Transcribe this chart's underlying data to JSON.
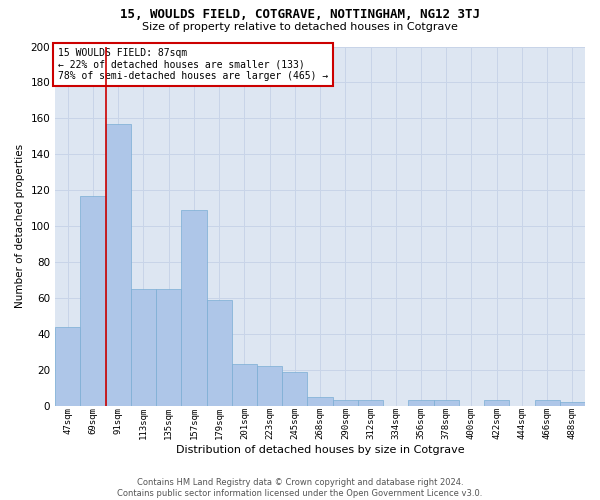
{
  "title1": "15, WOULDS FIELD, COTGRAVE, NOTTINGHAM, NG12 3TJ",
  "title2": "Size of property relative to detached houses in Cotgrave",
  "xlabel": "Distribution of detached houses by size in Cotgrave",
  "ylabel": "Number of detached properties",
  "footer1": "Contains HM Land Registry data © Crown copyright and database right 2024.",
  "footer2": "Contains public sector information licensed under the Open Government Licence v3.0.",
  "annotation_line1": "15 WOULDS FIELD: 87sqm",
  "annotation_line2": "← 22% of detached houses are smaller (133)",
  "annotation_line3": "78% of semi-detached houses are larger (465) →",
  "bar_values": [
    44,
    117,
    157,
    65,
    65,
    109,
    59,
    23,
    22,
    19,
    5,
    3,
    3,
    0,
    3,
    3,
    0,
    3,
    0,
    3,
    2
  ],
  "bar_labels": [
    "47sqm",
    "69sqm",
    "91sqm",
    "113sqm",
    "135sqm",
    "157sqm",
    "179sqm",
    "201sqm",
    "223sqm",
    "245sqm",
    "268sqm",
    "290sqm",
    "312sqm",
    "334sqm",
    "356sqm",
    "378sqm",
    "400sqm",
    "422sqm",
    "444sqm",
    "466sqm",
    "488sqm"
  ],
  "bar_color": "#aec6e8",
  "bar_edge_color": "#7aadd4",
  "vline_x": 1.5,
  "vline_color": "#cc0000",
  "annotation_box_color": "#cc0000",
  "grid_color": "#c8d4e8",
  "bg_color": "#dde6f2",
  "ylim": [
    0,
    200
  ],
  "yticks": [
    0,
    20,
    40,
    60,
    80,
    100,
    120,
    140,
    160,
    180,
    200
  ],
  "fig_width": 6.0,
  "fig_height": 5.0,
  "dpi": 100
}
